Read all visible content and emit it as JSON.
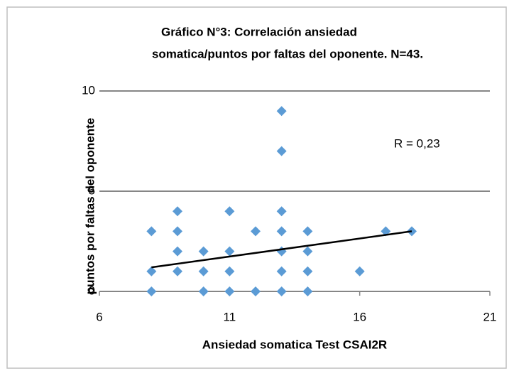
{
  "chart_data": {
    "type": "scatter",
    "title": [
      "Gráfico  N°3: Correlación ansiedad",
      "somatica/puntos por faltas del oponente. N=43."
    ],
    "x_label": "Ansiedad somatica Test CSAI2R",
    "y_label": "puntos por faltas del oponente",
    "x": [
      8,
      8,
      8,
      9,
      9,
      9,
      9,
      10,
      10,
      10,
      11,
      11,
      11,
      11,
      12,
      12,
      13,
      13,
      13,
      13,
      13,
      13,
      13,
      14,
      14,
      14,
      14,
      16,
      17,
      18
    ],
    "values": [
      3,
      1,
      0,
      4,
      3,
      2,
      1,
      2,
      1,
      0,
      4,
      2,
      1,
      0,
      3,
      0,
      9,
      7,
      4,
      3,
      2,
      1,
      0,
      3,
      2,
      1,
      0,
      1,
      3,
      3
    ],
    "color": "#5b9bd5",
    "trendline": {
      "x": [
        8,
        18
      ],
      "y": [
        1.2,
        3.0
      ]
    },
    "annotation": "R = 0,23",
    "xlim": [
      6,
      21
    ],
    "xticks": [
      6,
      11,
      16,
      21
    ],
    "ylim": [
      0,
      10
    ],
    "yticks": [
      0,
      5,
      10
    ],
    "grid": true
  }
}
